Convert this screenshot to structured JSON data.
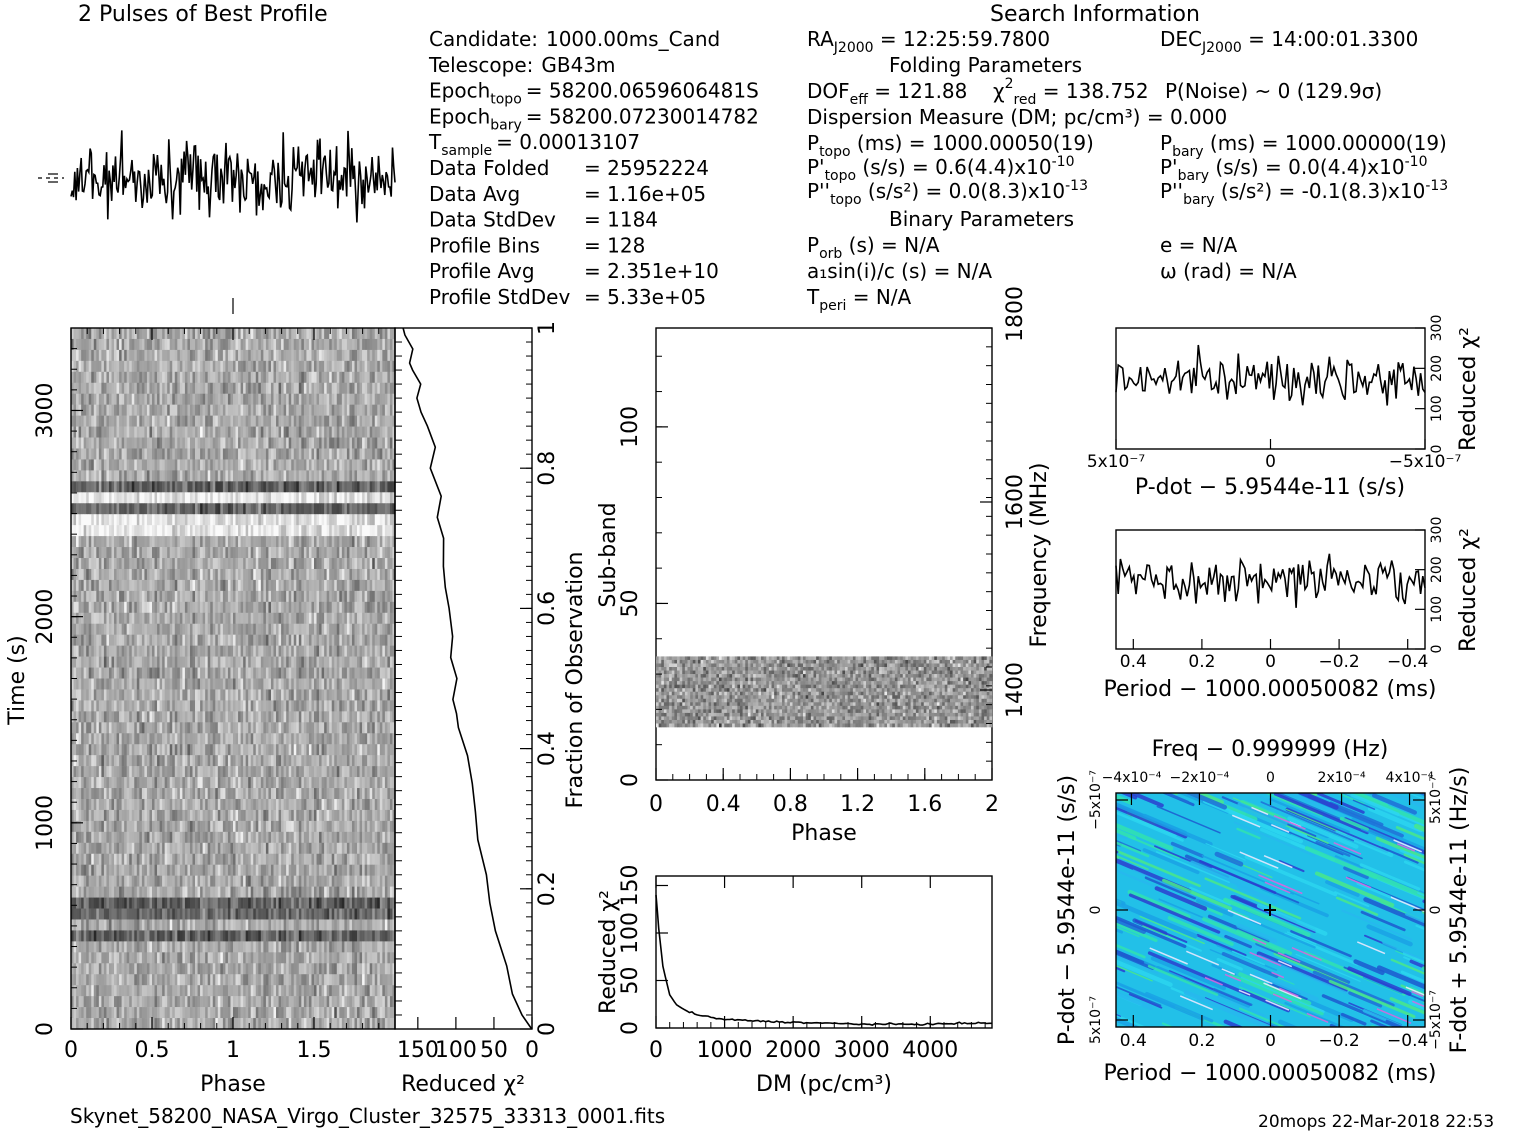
{
  "figure": {
    "title_left": "2 Pulses of Best Profile",
    "title_right": "Search Information",
    "filename": "Skynet_58200_NASA_Virgo_Cluster_32575_33313_0001.fits",
    "footer": "20mops 22-Mar-2018 22:53"
  },
  "info": {
    "col1": [
      {
        "label": "Candidate:",
        "value": "1000.00ms_Cand"
      },
      {
        "label": "Telescope:",
        "value": "GB43m"
      },
      {
        "label": "Epoch",
        "sub": "topo",
        "value": "= 58200.0659606481S"
      },
      {
        "label": "Epoch",
        "sub": "bary",
        "value": "= 58200.07230014782"
      },
      {
        "label": "T",
        "sub": "sample",
        "value": "=  0.00013107"
      },
      {
        "label": "Data Folded",
        "value": "=  25952224"
      },
      {
        "label": "Data Avg",
        "value": "=  1.16e+05"
      },
      {
        "label": "Data StdDev",
        "value": "=  1184"
      },
      {
        "label": "Profile Bins",
        "value": "=  128"
      },
      {
        "label": "Profile Avg",
        "value": "=  2.351e+10"
      },
      {
        "label": "Profile StdDev",
        "value": "=  5.33e+05"
      }
    ],
    "ra": {
      "label": "RA",
      "sub": "J2000",
      "value": " = 12:25:59.7800"
    },
    "dec": {
      "label": "DEC",
      "sub": "J2000",
      "value": " = 14:00:01.3300"
    },
    "folding_header": "Folding Parameters",
    "dof": {
      "label": "DOF",
      "sub": "eff",
      "value": " = 121.88"
    },
    "chi": {
      "label": "χ",
      "sup": "2",
      "sub": "red",
      "value": " = 138.752"
    },
    "pnoise": "P(Noise) ~ 0    (129.9σ)",
    "dm_line": "Dispersion Measure (DM; pc/cm³) = 0.000",
    "ptopo": {
      "label": "P",
      "sub": "topo",
      "value": " (ms) =  1000.00050(19)"
    },
    "pbary": {
      "label": "P",
      "sub": "bary",
      "value": " (ms) =  1000.00000(19)"
    },
    "pdtopo": {
      "label": "P'",
      "sub": "topo",
      "value": " (s/s) =  0.6(4.4)x10",
      "exp": "-10"
    },
    "pdbary": {
      "label": "P'",
      "sub": "bary",
      "value": " (s/s) = 0.0(4.4)x10",
      "exp": "-10"
    },
    "pddtopo": {
      "label": "P''",
      "sub": "topo",
      "value": " (s/s²) = 0.0(8.3)x10",
      "exp": "-13"
    },
    "pddbary": {
      "label": "P''",
      "sub": "bary",
      "value": " (s/s²) = -0.1(8.3)x10",
      "exp": "-13"
    },
    "binary_header": "Binary Parameters",
    "porb": {
      "label": "P",
      "sub": "orb",
      "value": " (s) = N/A"
    },
    "asini": "a₁sin(i)/c (s) = N/A",
    "tperi": {
      "label": "T",
      "sub": "peri",
      "value": " = N/A"
    },
    "ecc": "e = N/A",
    "omega": "ω (rad) = N/A"
  },
  "axes": {
    "phase_label": "Phase",
    "time_label": "Time (s)",
    "redchi_label": "Reduced χ²",
    "fraction_label": "Fraction of Observation",
    "subband_label": "Sub-band",
    "freq_label": "Frequency (MHz)",
    "dm_label": "DM (pc/cm³)",
    "pdot_label": "P-dot − 5.9544e-11 (s/s)",
    "period_label": "Period − 1000.00050082 (ms)",
    "freq_top_label": "Freq − 0.999999 (Hz)",
    "fdot_label": "F-dot + 5.9544e-11 (Hz/s)"
  },
  "ticks": {
    "phase_main": [
      "0",
      "0.5",
      "1",
      "1.5"
    ],
    "time": [
      "0",
      "1000",
      "2000",
      "3000"
    ],
    "redchi_time": [
      "150",
      "100",
      "50",
      "0"
    ],
    "fraction": [
      "0",
      "0.2",
      "0.4",
      "0.6",
      "0.8",
      "1"
    ],
    "phase_sub": [
      "0",
      "0.4",
      "0.8",
      "1.2",
      "1.6",
      "2"
    ],
    "subband": [
      "0",
      "50",
      "100"
    ],
    "freq": [
      "1400",
      "1600",
      "1800"
    ],
    "dm": [
      "0",
      "1000",
      "2000",
      "3000",
      "4000"
    ],
    "redchi_dm": [
      "0",
      "50",
      "100",
      "150"
    ],
    "pdot_x": [
      "5x10⁻⁷",
      "0",
      "−5x10⁻⁷"
    ],
    "redchi_small": [
      "0",
      "100",
      "200",
      "300"
    ],
    "period_x": [
      "0.4",
      "0.2",
      "0",
      "−0.2",
      "−0.4"
    ],
    "freq_top": [
      "−4x10⁻⁴",
      "−2x10⁻⁴",
      "0",
      "2x10⁻⁴",
      "4x10⁻⁴"
    ],
    "pdot_y": [
      "5x10⁻⁷",
      "0",
      "−5x10⁻⁷"
    ],
    "fdot_y": [
      "−5x10⁻⁷",
      "0",
      "5x10⁻⁷"
    ]
  },
  "chart_data": [
    {
      "type": "line",
      "title": "2 Pulses of Best Profile",
      "xlabel": "",
      "ylabel": "",
      "xlim": [
        0,
        2
      ],
      "bins_per_pulse": 128
    },
    {
      "type": "heatmap",
      "xlabel": "Phase",
      "ylabel": "Time (s)",
      "xlim": [
        0,
        2
      ],
      "ylim": [
        0,
        3400
      ],
      "colormap": "grayscale",
      "dark_rows_time_s": [
        450,
        550,
        620,
        2540,
        2620
      ]
    },
    {
      "type": "line",
      "xlabel": "Reduced χ²",
      "ylabel": "Fraction of Observation",
      "xlim": [
        180,
        0
      ],
      "ylim": [
        0,
        1
      ],
      "x": [
        2,
        15,
        25,
        35,
        50,
        55,
        60,
        70,
        75,
        80,
        85,
        95,
        100,
        104,
        98,
        108,
        103,
        110,
        112,
        118,
        115,
        125,
        120,
        132,
        128,
        138,
        145,
        150,
        148,
        155,
        160,
        158,
        165,
        170
      ],
      "y": [
        0.0,
        0.02,
        0.05,
        0.09,
        0.14,
        0.18,
        0.22,
        0.27,
        0.31,
        0.35,
        0.39,
        0.43,
        0.45,
        0.47,
        0.5,
        0.53,
        0.56,
        0.6,
        0.63,
        0.66,
        0.7,
        0.73,
        0.76,
        0.8,
        0.83,
        0.86,
        0.88,
        0.9,
        0.92,
        0.94,
        0.95,
        0.97,
        0.99,
        1.0
      ]
    },
    {
      "type": "heatmap",
      "xlabel": "Phase",
      "ylabel": "Sub-band",
      "y2label": "Frequency (MHz)",
      "xlim": [
        0,
        2
      ],
      "ylim": [
        0,
        128
      ],
      "band_subbands": [
        15,
        35
      ]
    },
    {
      "type": "line",
      "xlabel": "DM (pc/cm³)",
      "ylabel": "Reduced χ²",
      "xlim": [
        0,
        4900
      ],
      "ylim": [
        0,
        160
      ],
      "x": [
        0,
        40,
        100,
        200,
        300,
        450,
        600,
        800,
        1000,
        1300,
        1600,
        2000,
        2500,
        3000,
        3500,
        4000,
        4500,
        4900
      ],
      "y": [
        140,
        105,
        65,
        35,
        24,
        18,
        14,
        11,
        9,
        8,
        7,
        6,
        5,
        4,
        4,
        4,
        5,
        5
      ]
    },
    {
      "type": "line",
      "xlabel": "P-dot − 5.9544e-11 (s/s)",
      "ylabel": "Reduced χ²",
      "xlim": [
        5e-07,
        -5e-07
      ],
      "ylim": [
        0,
        300
      ]
    },
    {
      "type": "line",
      "xlabel": "Period − 1000.00050082 (ms)",
      "ylabel": "Reduced χ²",
      "xlim": [
        0.45,
        -0.45
      ],
      "ylim": [
        0,
        300
      ]
    },
    {
      "type": "heatmap",
      "xlabel": "Period − 1000.00050082 (ms)",
      "ylabel": "P-dot − 5.9544e-11 (s/s)",
      "xlim": [
        0.45,
        -0.45
      ],
      "ylim": [
        5e-07,
        -5e-07
      ],
      "colormap": "rainbow",
      "peak": [
        0,
        0
      ]
    }
  ]
}
